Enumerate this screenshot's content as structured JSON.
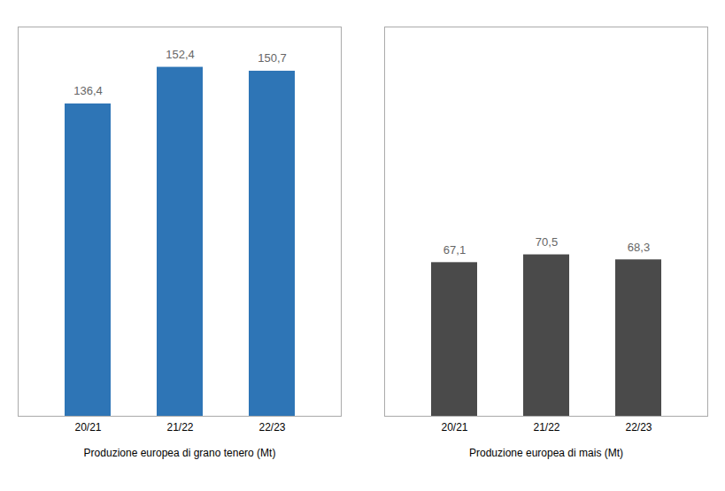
{
  "chart_data": [
    {
      "type": "bar",
      "categories": [
        "20/21",
        "21/22",
        "22/23"
      ],
      "values": [
        136.4,
        152.4,
        150.7
      ],
      "value_labels": [
        "136,4",
        "152,4",
        "150,7"
      ],
      "color": "#2E75B6",
      "xlabel": "Produzione europea di grano tenero (Mt)",
      "ylim": [
        0,
        170
      ],
      "data_labels": true,
      "tick_labels": "x",
      "grid": false
    },
    {
      "type": "bar",
      "categories": [
        "20/21",
        "21/22",
        "22/23"
      ],
      "values": [
        67.1,
        70.5,
        68.3
      ],
      "value_labels": [
        "67,1",
        "70,5",
        "68,3"
      ],
      "color": "#4A4A4A",
      "xlabel": "Produzione europea di mais (Mt)",
      "ylim": [
        0,
        170
      ],
      "data_labels": true,
      "tick_labels": "x",
      "grid": false
    }
  ]
}
